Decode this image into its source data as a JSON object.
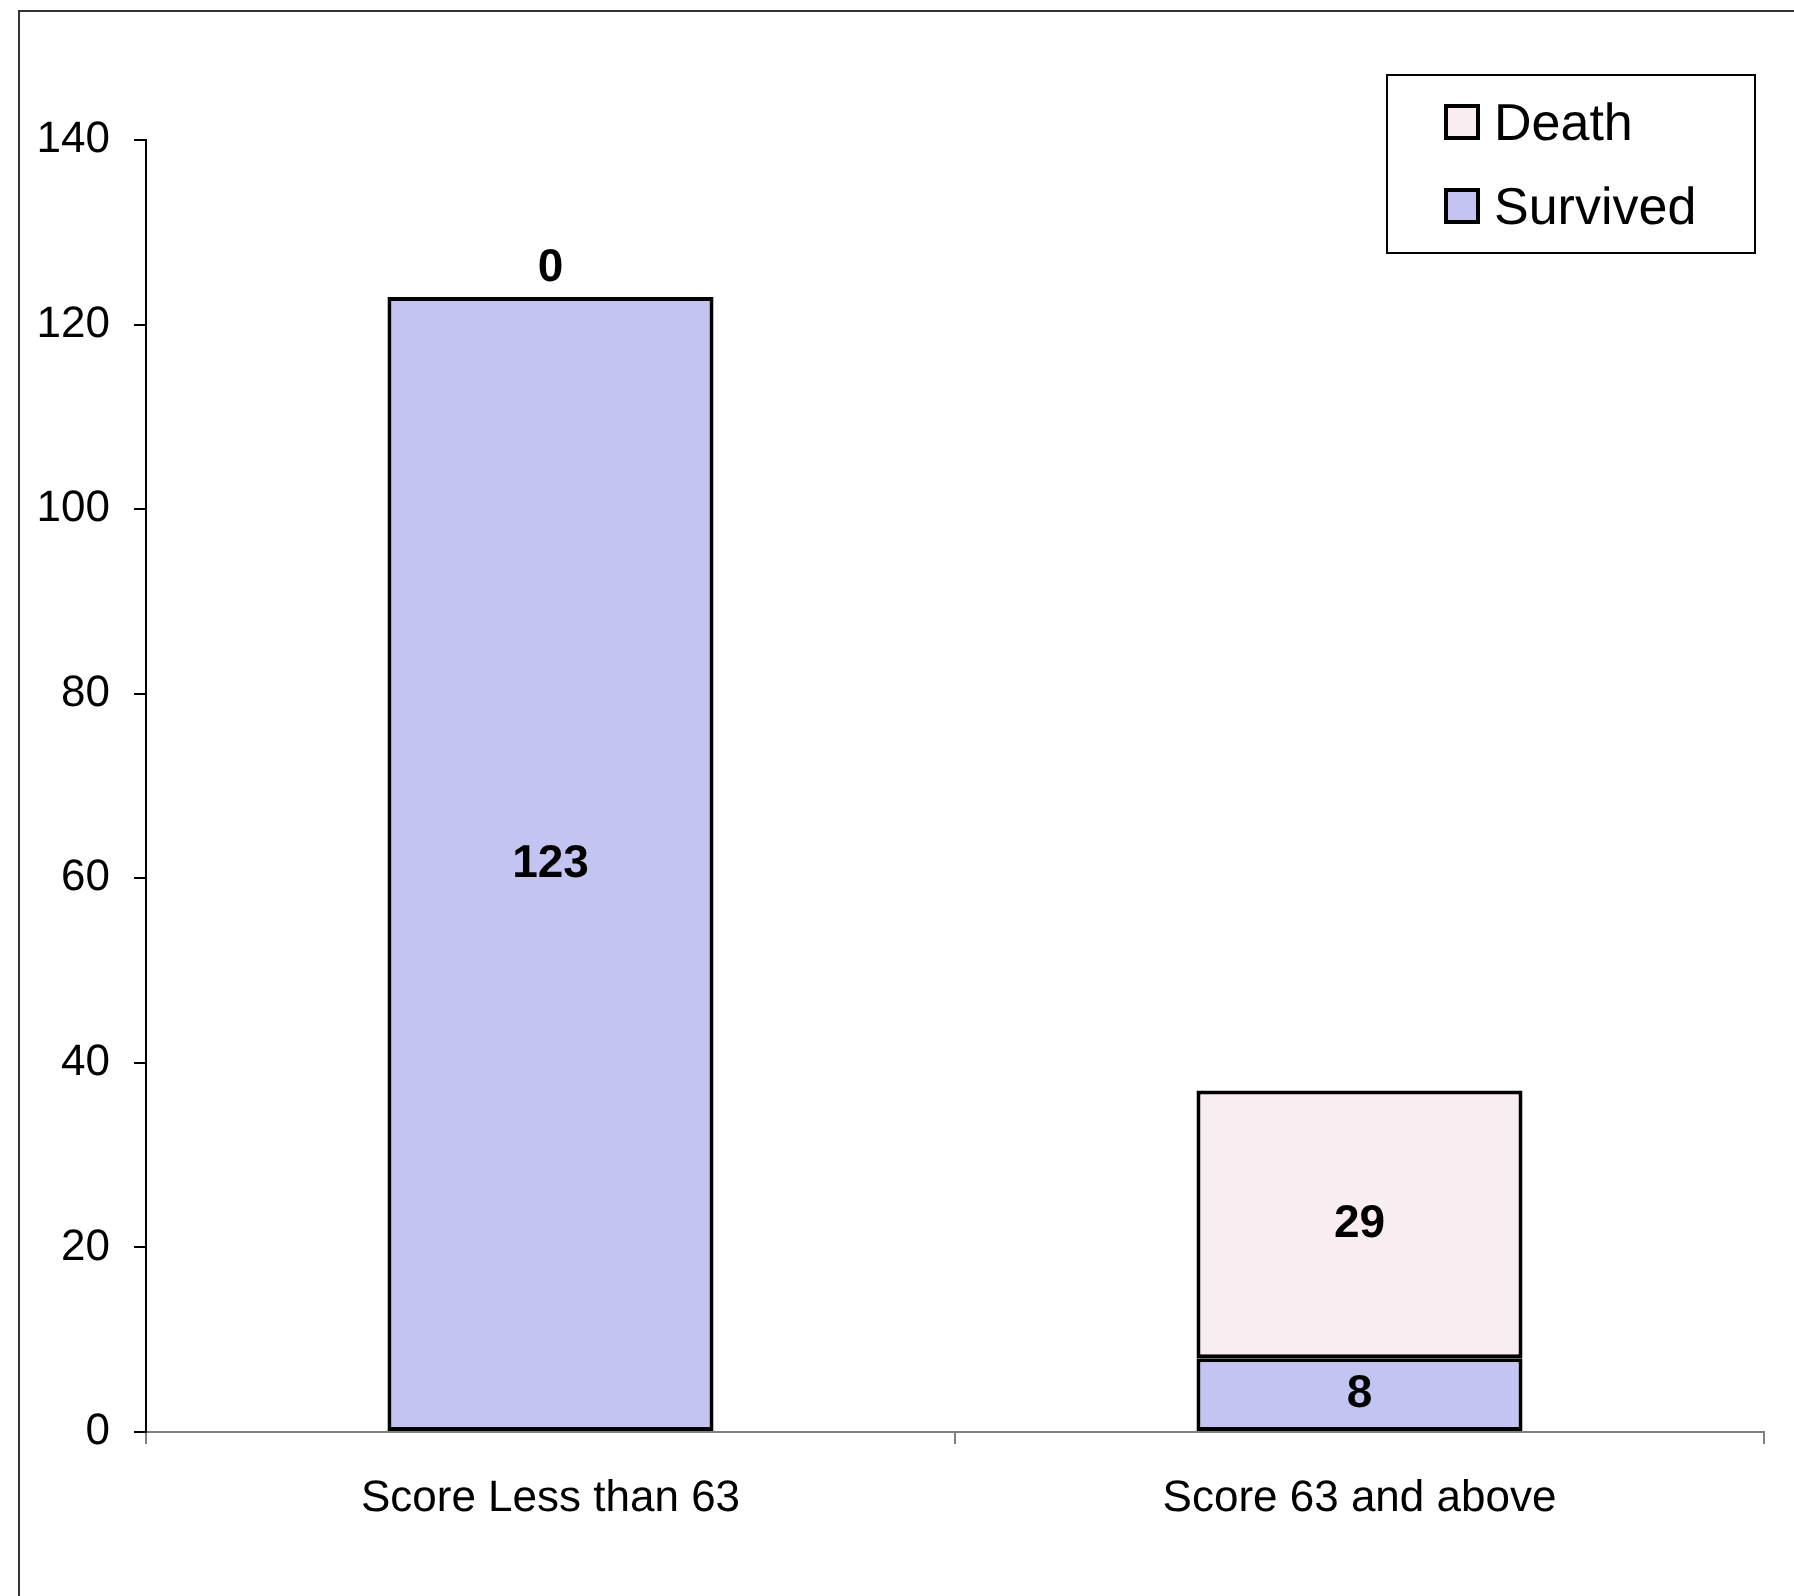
{
  "chart_data": {
    "type": "bar",
    "categories": [
      "Score Less than 63",
      "Score 63 and above"
    ],
    "stacked": true,
    "series": [
      {
        "name": "Survived",
        "color": "#c4c4f2",
        "values": [
          123,
          8
        ]
      },
      {
        "name": "Death",
        "color": "#f8eef2",
        "values": [
          0,
          29
        ]
      }
    ],
    "ylim": [
      0,
      140
    ],
    "yticks": [
      0,
      20,
      40,
      60,
      80,
      100,
      120,
      140
    ],
    "data_labels": true,
    "legend": "top right"
  }
}
